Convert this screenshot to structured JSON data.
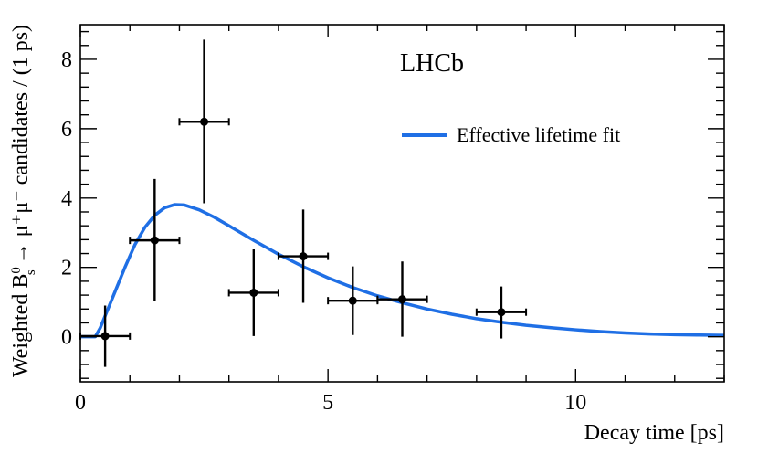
{
  "chart_data": {
    "type": "scatter",
    "experiment_label": "LHCb",
    "xlabel": "Decay time [ps]",
    "ylabel_parts": {
      "prefix": "Weighted B",
      "sup": "0",
      "sub": "s",
      "suffix": "→ μ⁺μ⁻ candidates / (1 ps)"
    },
    "xlim": [
      0,
      13
    ],
    "ylim": [
      -1.3,
      9.0
    ],
    "x_ticks": [
      0,
      5,
      10
    ],
    "y_ticks": [
      0,
      2,
      4,
      6,
      8
    ],
    "x_tick_labels": [
      "0",
      "5",
      "10"
    ],
    "y_tick_labels": [
      "0",
      "2",
      "4",
      "6",
      "8"
    ],
    "legend": [
      {
        "label": "Effective lifetime fit",
        "color": "#1f6fe5"
      }
    ],
    "data_points": [
      {
        "x": 0.5,
        "y": 0.02,
        "xlow": 0.0,
        "xhigh": 1.0,
        "ylow": -0.87,
        "yhigh": 0.9
      },
      {
        "x": 1.5,
        "y": 2.78,
        "xlow": 1.0,
        "xhigh": 2.0,
        "ylow": 1.02,
        "yhigh": 4.55
      },
      {
        "x": 2.5,
        "y": 6.2,
        "xlow": 2.0,
        "xhigh": 3.0,
        "ylow": 3.85,
        "yhigh": 8.57
      },
      {
        "x": 3.5,
        "y": 1.27,
        "xlow": 3.0,
        "xhigh": 4.0,
        "ylow": 0.02,
        "yhigh": 2.52
      },
      {
        "x": 4.5,
        "y": 2.32,
        "xlow": 4.0,
        "xhigh": 5.0,
        "ylow": 0.98,
        "yhigh": 3.67
      },
      {
        "x": 5.5,
        "y": 1.04,
        "xlow": 5.0,
        "xhigh": 6.0,
        "ylow": 0.05,
        "yhigh": 2.03
      },
      {
        "x": 6.5,
        "y": 1.08,
        "xlow": 6.0,
        "xhigh": 7.0,
        "ylow": 0.0,
        "yhigh": 2.17
      },
      {
        "x": 8.5,
        "y": 0.71,
        "xlow": 8.0,
        "xhigh": 9.0,
        "ylow": -0.05,
        "yhigh": 1.45
      }
    ],
    "fit_curve": {
      "name": "Effective lifetime fit",
      "color": "#1f6fe5",
      "x": [
        0.3,
        0.4,
        0.5,
        0.7,
        0.9,
        1.1,
        1.3,
        1.5,
        1.7,
        1.9,
        2.1,
        2.4,
        2.7,
        3.0,
        3.5,
        4.0,
        4.5,
        5.0,
        5.5,
        6.0,
        6.5,
        7.0,
        7.5,
        8.0,
        8.5,
        9.0,
        9.5,
        10.0,
        10.5,
        11.0,
        11.5,
        12.0,
        12.5,
        13.0
      ],
      "y": [
        0.0,
        0.25,
        0.6,
        1.3,
        2.0,
        2.65,
        3.15,
        3.5,
        3.72,
        3.81,
        3.8,
        3.66,
        3.45,
        3.2,
        2.78,
        2.38,
        2.02,
        1.7,
        1.42,
        1.18,
        0.98,
        0.8,
        0.65,
        0.52,
        0.42,
        0.33,
        0.26,
        0.2,
        0.15,
        0.11,
        0.08,
        0.06,
        0.05,
        0.04
      ]
    }
  }
}
